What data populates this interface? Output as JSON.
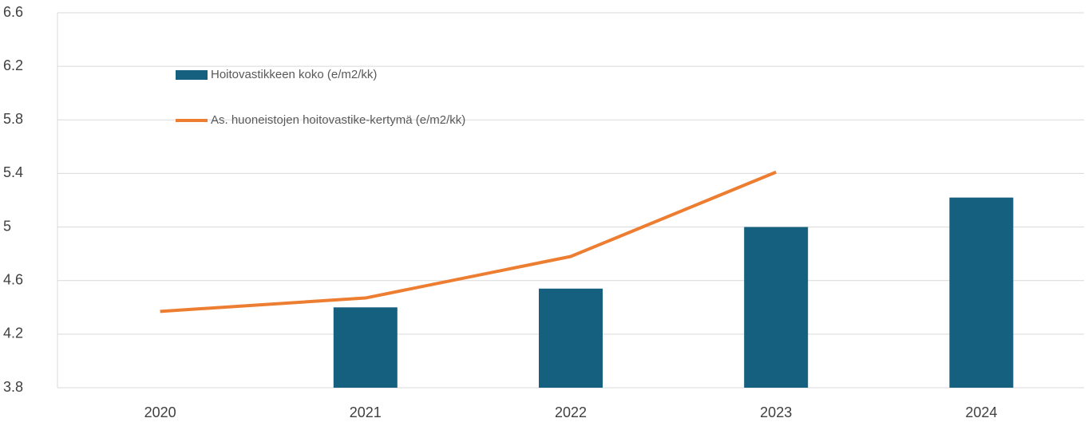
{
  "chart_data": {
    "type": "bar",
    "categories": [
      "2020",
      "2021",
      "2022",
      "2023",
      "2024"
    ],
    "series": [
      {
        "name": "Hoitovastikkeen koko (e/m2/kk)",
        "type": "bar",
        "color": "#16607f",
        "values": [
          null,
          4.4,
          4.54,
          5.0,
          5.22
        ]
      },
      {
        "name": "As. huoneistojen hoitovastike-kertymä (e/m2/kk)",
        "type": "line",
        "color": "#ed7d31",
        "values": [
          4.37,
          4.47,
          4.78,
          5.41,
          null
        ]
      }
    ],
    "ylim": [
      3.8,
      6.6
    ],
    "yticks": [
      3.8,
      4.2,
      4.6,
      5,
      5.4,
      5.8,
      6.2,
      6.6
    ],
    "grid": true,
    "legend": "top-left"
  }
}
